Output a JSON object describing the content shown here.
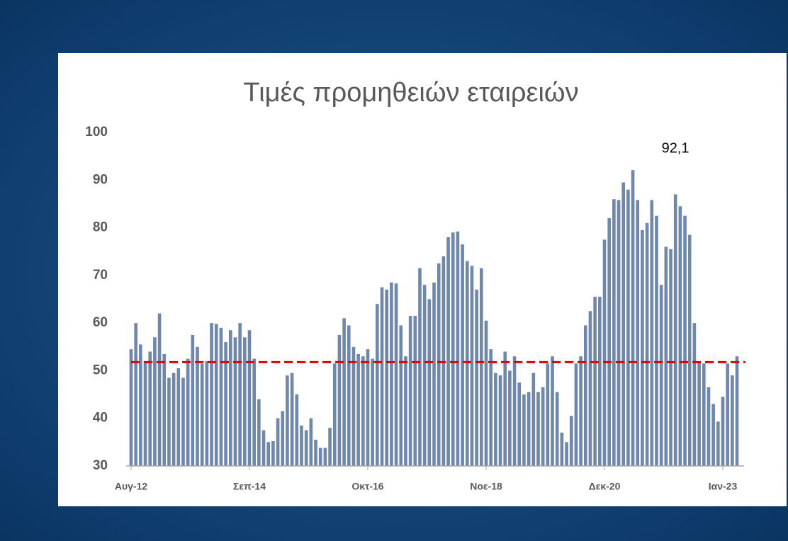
{
  "chart_data": {
    "type": "bar",
    "title": "Τιμές προμηθειών εταιρειών",
    "categories": [
      "Αυγ-12",
      null,
      null,
      null,
      null,
      null,
      null,
      null,
      null,
      null,
      null,
      null,
      null,
      null,
      null,
      null,
      null,
      null,
      null,
      null,
      null,
      null,
      null,
      null,
      null,
      "Σεπ-14",
      null,
      null,
      null,
      null,
      null,
      null,
      null,
      null,
      null,
      null,
      null,
      null,
      null,
      null,
      null,
      null,
      null,
      null,
      null,
      null,
      null,
      null,
      null,
      null,
      "Οκτ-16",
      null,
      null,
      null,
      null,
      null,
      null,
      null,
      null,
      null,
      null,
      null,
      null,
      null,
      null,
      null,
      null,
      null,
      null,
      null,
      null,
      null,
      null,
      null,
      null,
      "Νοε-18",
      null,
      null,
      null,
      null,
      null,
      null,
      null,
      null,
      null,
      null,
      null,
      null,
      null,
      null,
      null,
      null,
      null,
      null,
      null,
      null,
      null,
      null,
      null,
      null,
      "Δεκ-20",
      null,
      null,
      null,
      null,
      null,
      null,
      null,
      null,
      null,
      null,
      null,
      null,
      null,
      null,
      null,
      null,
      null,
      null,
      null,
      null,
      null,
      null,
      null,
      null,
      "Ιαν-23",
      null,
      null,
      null
    ],
    "values": [
      54.5,
      60,
      55.5,
      52,
      54,
      57,
      62,
      53.5,
      48.5,
      49.5,
      50.5,
      48.5,
      52.5,
      57.5,
      55,
      51.5,
      52,
      60,
      59.8,
      59,
      56,
      58.5,
      57,
      60,
      57,
      58.5,
      52.5,
      44,
      37.5,
      35,
      35.2,
      40,
      41.5,
      49,
      49.5,
      45,
      38.5,
      37.5,
      40,
      35.5,
      33.8,
      33.8,
      38,
      51.5,
      57.5,
      61,
      59.5,
      55,
      53.5,
      53,
      54.5,
      52.5,
      64,
      67.5,
      67,
      68.5,
      68.3,
      59.5,
      53,
      61.5,
      61.5,
      71.5,
      68,
      65,
      68.5,
      72.5,
      74,
      78,
      79,
      79.2,
      76.5,
      73,
      72,
      67,
      71.5,
      60.5,
      54.5,
      49.5,
      49,
      54,
      50,
      53,
      47.5,
      45,
      45.5,
      49.5,
      45.5,
      46.5,
      51.5,
      53,
      45.5,
      37,
      35,
      40.5,
      51.5,
      53,
      59.5,
      62.5,
      65.5,
      65.5,
      77.5,
      82,
      86,
      85.8,
      89.5,
      88,
      92.1,
      85.8,
      79.5,
      81,
      85.8,
      82.5,
      68,
      76,
      75.5,
      87,
      84.5,
      82.5,
      78.5,
      60,
      52,
      51.5,
      46.5,
      43,
      39.3,
      44.5,
      51.5,
      49,
      53
    ],
    "color": "#6f87ab",
    "ylim": [
      30,
      100
    ],
    "yticks": [
      30,
      40,
      50,
      60,
      70,
      80,
      90,
      100
    ],
    "reference_line": {
      "value": 51.8,
      "color": "#e00000"
    },
    "annotation": {
      "text": "92,1",
      "value": 92.1
    }
  }
}
